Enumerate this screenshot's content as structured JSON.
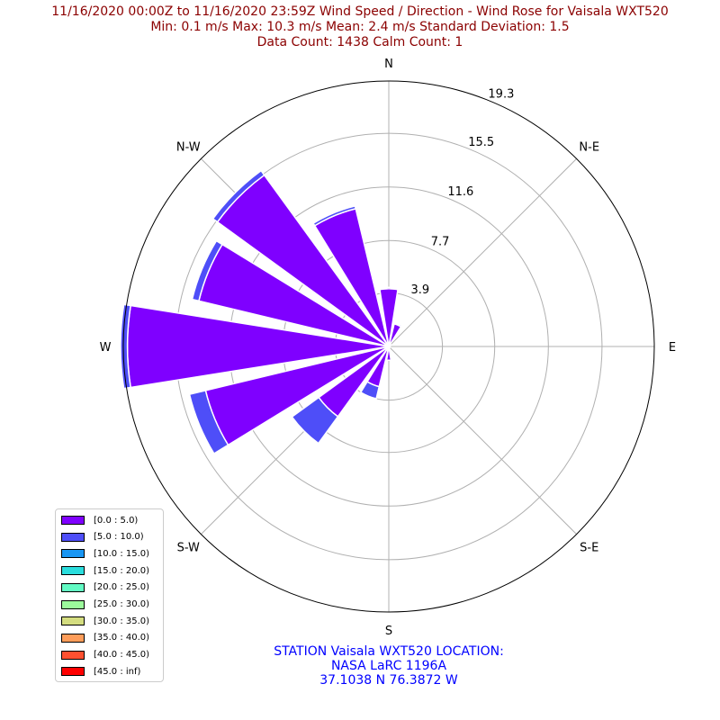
{
  "title": {
    "line1": "11/16/2020 00:00Z to 11/16/2020 23:59Z Wind Speed / Direction - Wind Rose for Vaisala WXT520",
    "line2": "Min: 0.1 m/s   Max: 10.3 m/s   Mean: 2.4 m/s  Standard Deviation: 1.5",
    "line3": "Data Count: 1438  Calm Count:  1"
  },
  "station": {
    "line1": "STATION Vaisala WXT520 LOCATION:",
    "line2": "NASA LaRC 1196A",
    "line3": "37.1038 N 76.3872 W"
  },
  "colors": {
    "title": "#8b0000",
    "station": "#0000ff",
    "grid": "#b0b0b0"
  },
  "chart_data": {
    "type": "polar-bar",
    "direction_labels": [
      "N",
      "N-E",
      "E",
      "S-E",
      "S",
      "S-W",
      "W",
      "N-W"
    ],
    "radial_ticks": [
      "3.9",
      "7.7",
      "11.6",
      "15.5",
      "19.3"
    ],
    "radial_tick_values": [
      3.9,
      7.7,
      11.6,
      15.5,
      19.3
    ],
    "rmax": 19.3,
    "sectors": [
      "N",
      "NNE",
      "NE",
      "ENE",
      "E",
      "ESE",
      "SE",
      "SSE",
      "S",
      "SSW",
      "SW",
      "WSW",
      "W",
      "WNW",
      "NW",
      "NNW"
    ],
    "series": [
      {
        "name": "[0.0 : 5.0)",
        "color": "#7f00ff",
        "values": [
          4.2,
          1.7,
          0.2,
          0.1,
          0.1,
          0.1,
          0.1,
          0.1,
          1.0,
          3.0,
          6.3,
          13.7,
          19.0,
          14.2,
          15.4,
          10.3
        ]
      },
      {
        "name": "[5.0 : 10.0)",
        "color": "#4e4ef8",
        "values": [
          0.1,
          0.1,
          0.0,
          0.0,
          0.0,
          0.0,
          0.0,
          0.0,
          0.0,
          0.9,
          2.4,
          1.2,
          0.5,
          0.5,
          0.4,
          0.2
        ]
      },
      {
        "name": "[10.0 : 15.0)",
        "color": "#1996f3",
        "values": [
          0,
          0,
          0,
          0,
          0,
          0,
          0,
          0,
          0,
          0,
          0,
          0,
          0,
          0,
          0,
          0
        ]
      },
      {
        "name": "[15.0 : 20.0)",
        "color": "#2adddd",
        "values": [
          0,
          0,
          0,
          0,
          0,
          0,
          0,
          0,
          0,
          0,
          0,
          0,
          0,
          0,
          0,
          0
        ]
      },
      {
        "name": "[20.0 : 25.0)",
        "color": "#62fbc4",
        "values": [
          0,
          0,
          0,
          0,
          0,
          0,
          0,
          0,
          0,
          0,
          0,
          0,
          0,
          0,
          0,
          0
        ]
      },
      {
        "name": "[25.0 : 30.0)",
        "color": "#9cfa9c",
        "values": [
          0,
          0,
          0,
          0,
          0,
          0,
          0,
          0,
          0,
          0,
          0,
          0,
          0,
          0,
          0,
          0
        ]
      },
      {
        "name": "[30.0 : 35.0)",
        "color": "#d4dd80",
        "values": [
          0,
          0,
          0,
          0,
          0,
          0,
          0,
          0,
          0,
          0,
          0,
          0,
          0,
          0,
          0,
          0
        ]
      },
      {
        "name": "[35.0 : 40.0)",
        "color": "#ff9d5a",
        "values": [
          0,
          0,
          0,
          0,
          0,
          0,
          0,
          0,
          0,
          0,
          0,
          0,
          0,
          0,
          0,
          0
        ]
      },
      {
        "name": "[40.0 : 45.0)",
        "color": "#ff5030",
        "values": [
          0,
          0,
          0,
          0,
          0,
          0,
          0,
          0,
          0,
          0,
          0,
          0,
          0,
          0,
          0,
          0
        ]
      },
      {
        "name": "[45.0 : inf)",
        "color": "#ff0000",
        "values": [
          0,
          0,
          0,
          0,
          0,
          0,
          0,
          0,
          0,
          0,
          0,
          0,
          0,
          0,
          0,
          0
        ]
      }
    ],
    "legend_position": "lower-left",
    "grid": true
  }
}
